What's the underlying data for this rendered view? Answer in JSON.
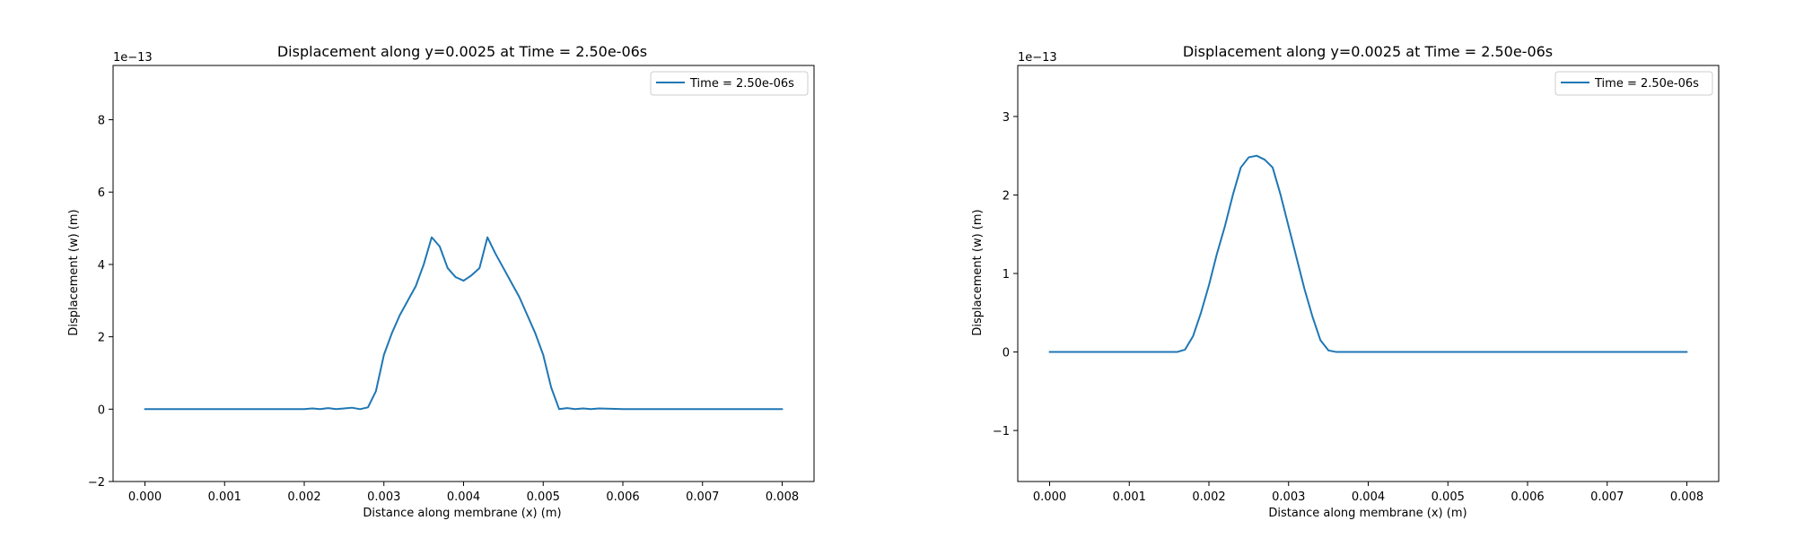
{
  "chart_data": [
    {
      "type": "line",
      "title": "Displacement along y=0.0025 at Time = 2.50e-06s",
      "xlabel": "Distance along membrane (x) (m)",
      "ylabel": "Displacement (w) (m)",
      "y_offset_label": "1e−13",
      "xlim": [
        -0.0004,
        0.0084
      ],
      "ylim": [
        -2.0,
        9.5
      ],
      "xticks": [
        "0.000",
        "0.001",
        "0.002",
        "0.003",
        "0.004",
        "0.005",
        "0.006",
        "0.007",
        "0.008"
      ],
      "yticks": [
        "−2",
        "0",
        "2",
        "4",
        "6",
        "8"
      ],
      "ytick_values": [
        -2,
        0,
        2,
        4,
        6,
        8
      ],
      "grid": false,
      "legend_position": "top-right",
      "color": "#1f77b4",
      "series": [
        {
          "name": "Time = 2.50e-06s",
          "x": [
            0.0,
            0.0005,
            0.001,
            0.0015,
            0.002,
            0.0021,
            0.0022,
            0.0023,
            0.0024,
            0.0025,
            0.0026,
            0.0027,
            0.0028,
            0.0029,
            0.003,
            0.0031,
            0.0032,
            0.0033,
            0.0034,
            0.0035,
            0.0036,
            0.0037,
            0.0038,
            0.0039,
            0.004,
            0.0041,
            0.0042,
            0.0043,
            0.0044,
            0.0045,
            0.0046,
            0.0047,
            0.0048,
            0.0049,
            0.005,
            0.0051,
            0.0052,
            0.0053,
            0.0054,
            0.0055,
            0.0056,
            0.0057,
            0.006,
            0.007,
            0.008
          ],
          "y": [
            0.0,
            0.0,
            0.0,
            0.0,
            0.0,
            0.02,
            0.0,
            0.03,
            0.0,
            0.02,
            0.04,
            0.0,
            0.05,
            0.5,
            1.5,
            2.1,
            2.6,
            3.0,
            3.4,
            4.0,
            4.75,
            4.5,
            3.9,
            3.65,
            3.55,
            3.7,
            3.9,
            4.75,
            4.3,
            3.9,
            3.5,
            3.1,
            2.6,
            2.1,
            1.5,
            0.6,
            0.0,
            0.03,
            0.0,
            0.02,
            0.0,
            0.02,
            0.0,
            0.0,
            0.0
          ]
        }
      ]
    },
    {
      "type": "line",
      "title": "Displacement along y=0.0025 at Time = 2.50e-06s",
      "xlabel": "Distance along membrane (x) (m)",
      "ylabel": "Displacement (w) (m)",
      "y_offset_label": "1e−13",
      "xlim": [
        -0.0004,
        0.0084
      ],
      "ylim": [
        -1.65,
        3.65
      ],
      "xticks": [
        "0.000",
        "0.001",
        "0.002",
        "0.003",
        "0.004",
        "0.005",
        "0.006",
        "0.007",
        "0.008"
      ],
      "yticks": [
        "−1",
        "0",
        "1",
        "2",
        "3"
      ],
      "ytick_values": [
        -1,
        0,
        1,
        2,
        3
      ],
      "grid": false,
      "legend_position": "top-right",
      "color": "#1f77b4",
      "series": [
        {
          "name": "Time = 2.50e-06s",
          "x": [
            0.0,
            0.0005,
            0.001,
            0.0016,
            0.0017,
            0.0018,
            0.0019,
            0.002,
            0.0021,
            0.0022,
            0.0023,
            0.0024,
            0.0025,
            0.0026,
            0.0027,
            0.0028,
            0.0029,
            0.003,
            0.0031,
            0.0032,
            0.0033,
            0.0034,
            0.0035,
            0.0036,
            0.0037,
            0.0038,
            0.004,
            0.005,
            0.006,
            0.007,
            0.008
          ],
          "y": [
            0.0,
            0.0,
            0.0,
            0.0,
            0.03,
            0.2,
            0.5,
            0.85,
            1.25,
            1.6,
            2.0,
            2.35,
            2.48,
            2.5,
            2.45,
            2.35,
            2.0,
            1.6,
            1.2,
            0.8,
            0.45,
            0.15,
            0.02,
            0.0,
            0.0,
            0.0,
            0.0,
            0.0,
            0.0,
            0.0,
            0.0
          ]
        }
      ]
    }
  ]
}
